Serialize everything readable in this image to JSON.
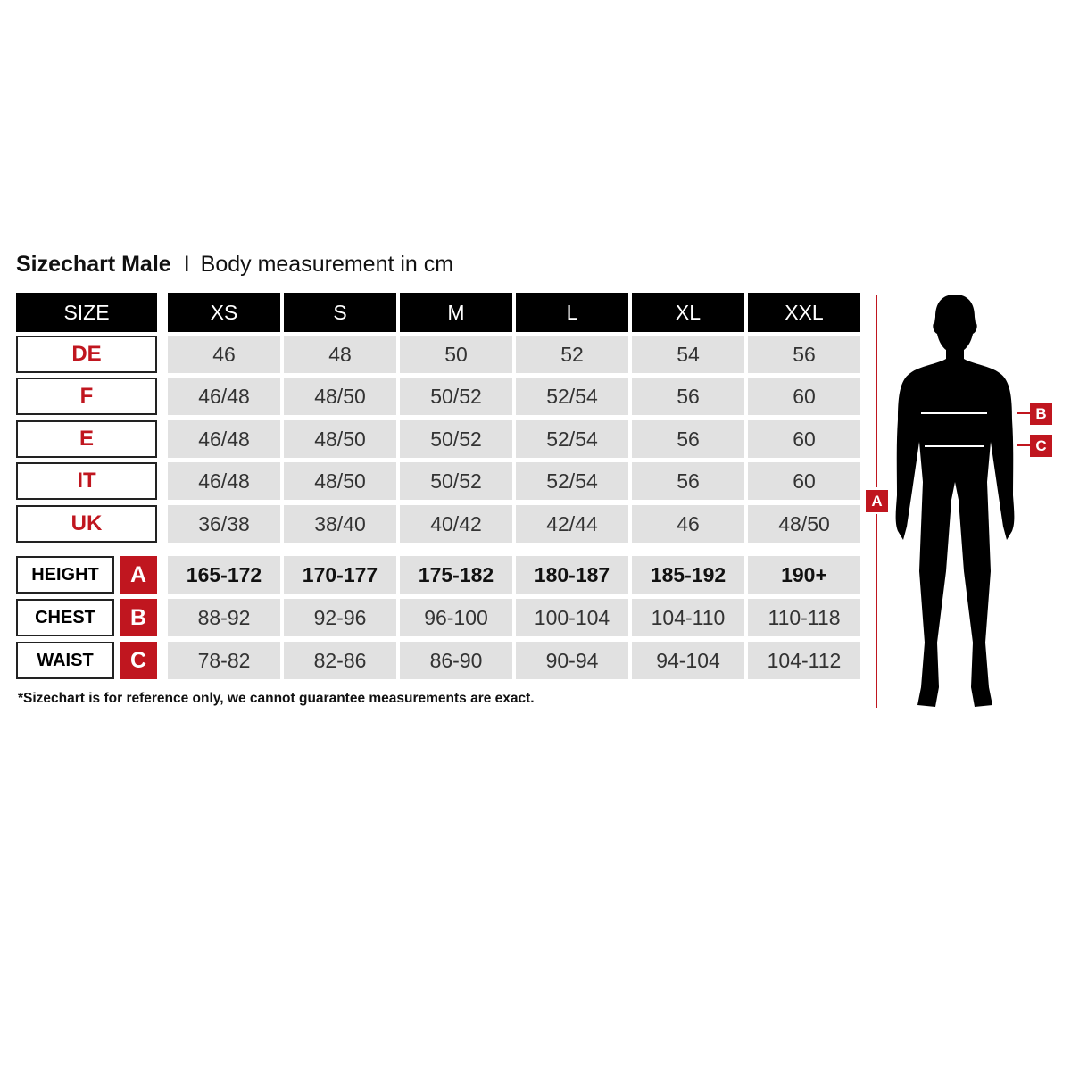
{
  "title": {
    "main": "Sizechart Male",
    "separator": "I",
    "sub": "Body measurement in cm"
  },
  "header": {
    "label": "SIZE",
    "sizes": [
      "XS",
      "S",
      "M",
      "L",
      "XL",
      "XXL"
    ]
  },
  "conversion_rows": [
    {
      "label": "DE",
      "values": [
        "46",
        "48",
        "50",
        "52",
        "54",
        "56"
      ]
    },
    {
      "label": "F",
      "values": [
        "46/48",
        "48/50",
        "50/52",
        "52/54",
        "56",
        "60"
      ]
    },
    {
      "label": "E",
      "values": [
        "46/48",
        "48/50",
        "50/52",
        "52/54",
        "56",
        "60"
      ]
    },
    {
      "label": "IT",
      "values": [
        "46/48",
        "48/50",
        "50/52",
        "52/54",
        "56",
        "60"
      ]
    },
    {
      "label": "UK",
      "values": [
        "36/38",
        "38/40",
        "40/42",
        "42/44",
        "46",
        "48/50"
      ]
    }
  ],
  "measurement_rows": [
    {
      "label": "HEIGHT",
      "key": "A",
      "values": [
        "165-172",
        "170-177",
        "175-182",
        "180-187",
        "185-192",
        "190+"
      ]
    },
    {
      "label": "CHEST",
      "key": "B",
      "values": [
        "88-92",
        "92-96",
        "96-100",
        "100-104",
        "104-110",
        "110-118"
      ]
    },
    {
      "label": "WAIST",
      "key": "C",
      "values": [
        "78-82",
        "82-86",
        "86-90",
        "90-94",
        "94-104",
        "104-112"
      ]
    }
  ],
  "footnote": "*Sizechart is for reference only, we cannot guarantee measurements are exact.",
  "figure": {
    "height_tag": "A",
    "chest_tag": "B",
    "waist_tag": "C"
  },
  "colors": {
    "accent_red": "#c0161f",
    "header_black": "#000000",
    "cell_gray": "#e1e1e1"
  }
}
